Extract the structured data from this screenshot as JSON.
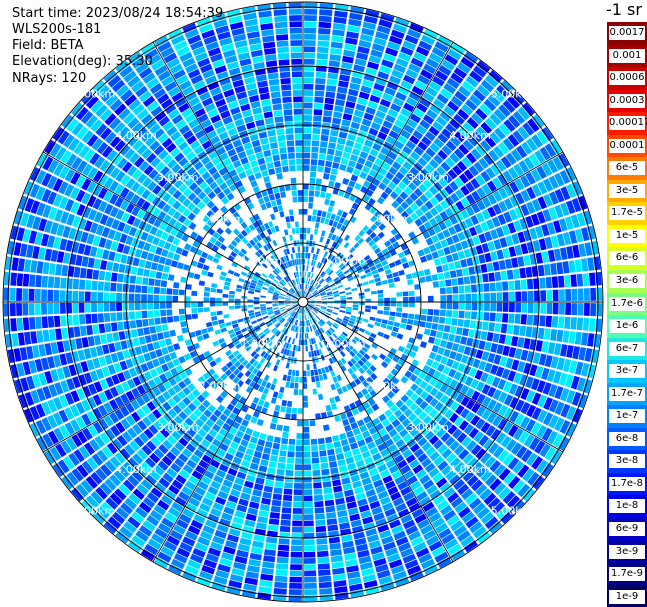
{
  "info": {
    "start_time": "Start time: 2023/08/24 18:54:39",
    "device": "WLS200s-181",
    "field": "Field: BETA",
    "elevation": "Elevation(deg): 35.30",
    "nrays": "NRays: 120"
  },
  "colorbar": {
    "unit": "-1 sr",
    "labels": [
      "0.0017",
      "0.001",
      "0.0006",
      "0.0003",
      "0.00017",
      "0.0001",
      "6e-5",
      "3e-5",
      "1.7e-5",
      "1e-5",
      "6e-6",
      "3e-6",
      "1.7e-6",
      "1e-6",
      "6e-7",
      "3e-7",
      "1.7e-7",
      "1e-7",
      "6e-8",
      "3e-8",
      "1.7e-8",
      "1e-8",
      "6e-9",
      "3e-9",
      "1.7e-9",
      "1e-9"
    ],
    "colors": [
      "#8b0000",
      "#a30000",
      "#c80000",
      "#e60000",
      "#ff1a00",
      "#ff4a00",
      "#ff7a00",
      "#ffaa00",
      "#ffd000",
      "#ffff00",
      "#d8ff22",
      "#a8ff52",
      "#78ff82",
      "#4bffaf",
      "#1fe6e0",
      "#00c8ff",
      "#00a4ff",
      "#0080ff",
      "#005cff",
      "#0038ff",
      "#0018ff",
      "#0000e0",
      "#0000c0",
      "#0000a0",
      "#000080",
      "#000060"
    ]
  },
  "ppi": {
    "range_labels": [
      "1.00km",
      "2.00km",
      "3.00km",
      "4.00km",
      "5.00km"
    ]
  }
}
